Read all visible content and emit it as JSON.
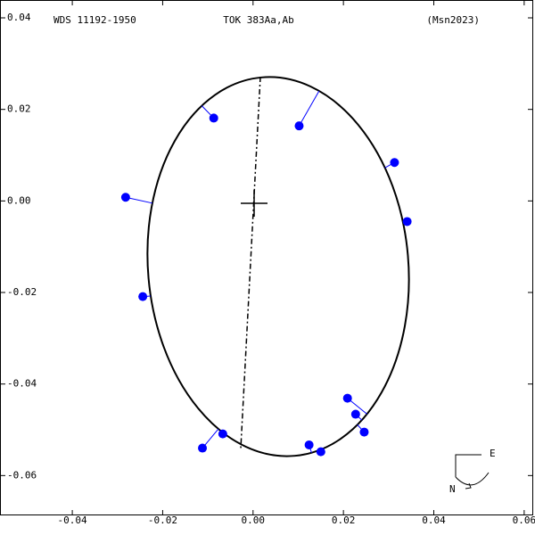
{
  "chart_data": {
    "type": "scatter",
    "title": "WDS 11192-1950",
    "subtitle": "TOK 383Aa,Ab",
    "annotation": "(Msn2023)",
    "compass": {
      "east": "E",
      "north": "N"
    },
    "color": "#0000ff",
    "x": [
      -0.0282,
      -0.0087,
      0.0102,
      0.0313,
      0.0341,
      -0.0244,
      0.0209,
      0.0227,
      0.0246,
      -0.0067,
      -0.0112,
      0.0124,
      0.015
    ],
    "values": [
      0.0008,
      0.0181,
      0.0164,
      0.0084,
      -0.0045,
      -0.0209,
      -0.0431,
      -0.0466,
      -0.0505,
      -0.0509,
      -0.054,
      -0.0533,
      -0.0548
    ],
    "xlim": [
      -0.056,
      0.062
    ],
    "ylim": [
      -0.0687,
      0.0439
    ],
    "xticks": [
      -0.04,
      -0.02,
      {
        "value": 0,
        "label": "0.00"
      },
      0.02,
      0.04,
      0.06
    ],
    "yticks": [
      0.04,
      0.02,
      {
        "value": 0,
        "label": "0.00"
      },
      -0.02,
      -0.04,
      -0.06
    ]
  }
}
